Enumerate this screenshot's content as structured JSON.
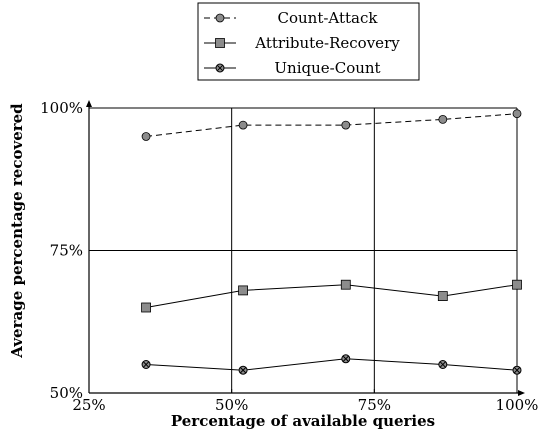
{
  "chart_data": {
    "type": "line",
    "xlabel": "Percentage of available queries",
    "ylabel": "Average percentage recovered",
    "xlim": [
      25,
      100
    ],
    "ylim": [
      50,
      100
    ],
    "xticks": [
      25,
      50,
      75,
      100
    ],
    "yticks": [
      50,
      75,
      100
    ],
    "xtick_labels": [
      "25%",
      "50%",
      "75%",
      "100%"
    ],
    "ytick_labels": [
      "50%",
      "75%",
      "100%"
    ],
    "grid": true,
    "legend_position": "top-center",
    "series": [
      {
        "name": "Count-Attack",
        "marker": "circle-filled",
        "line": "dashed",
        "color": "#8c8c8c",
        "x": [
          35,
          52,
          70,
          87,
          100
        ],
        "y": [
          95,
          97,
          97,
          98,
          99
        ]
      },
      {
        "name": "Attribute-Recovery",
        "marker": "square-filled",
        "line": "solid",
        "color": "#8c8c8c",
        "x": [
          35,
          52,
          70,
          87,
          100
        ],
        "y": [
          65,
          68,
          69,
          67,
          69
        ]
      },
      {
        "name": "Unique-Count",
        "marker": "circle-cross",
        "line": "solid",
        "color": "#8c8c8c",
        "x": [
          35,
          52,
          70,
          87,
          100
        ],
        "y": [
          55,
          54,
          56,
          55,
          54
        ]
      }
    ]
  }
}
